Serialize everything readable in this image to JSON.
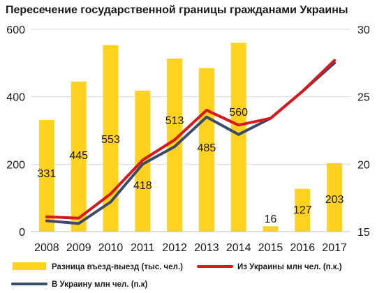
{
  "title": "Пересечение государственной границы гражданами Украины",
  "colors": {
    "bars": "#FFD21F",
    "line_out": "#D7191C",
    "line_in": "#3A4B6B",
    "grid": "#D9D9D9"
  },
  "chart_data": {
    "type": "bar+line",
    "categories": [
      "2008",
      "2009",
      "2010",
      "2011",
      "2012",
      "2013",
      "2014",
      "2015",
      "2016",
      "2017"
    ],
    "left_axis": {
      "ylim": [
        0,
        600
      ],
      "ticks": [
        0,
        200,
        400,
        600
      ]
    },
    "right_axis": {
      "ylim": [
        15,
        30
      ],
      "ticks": [
        15,
        20,
        25,
        30
      ]
    },
    "grid": true,
    "legend_position": "bottom",
    "series": [
      {
        "name": "Разница въезд-выезд (тыс. чел.)",
        "type": "bar",
        "axis": "left",
        "values": [
          331,
          445,
          553,
          418,
          513,
          485,
          560,
          16,
          127,
          203
        ],
        "labels": [
          "331",
          "445",
          "553",
          "418",
          "513",
          "485",
          "560",
          "16",
          "127",
          "203"
        ]
      },
      {
        "name": "Из Украины млн чел. (п.к.)",
        "type": "line",
        "axis": "right",
        "values": [
          16.1,
          16.0,
          17.8,
          20.3,
          21.8,
          24.0,
          22.9,
          23.4,
          25.4,
          27.7
        ]
      },
      {
        "name": "В Украину млн чел. (п.к)",
        "type": "line",
        "axis": "right",
        "values": [
          15.8,
          15.6,
          17.2,
          20.0,
          21.3,
          23.5,
          22.2,
          23.4,
          25.4,
          27.5
        ]
      }
    ]
  }
}
